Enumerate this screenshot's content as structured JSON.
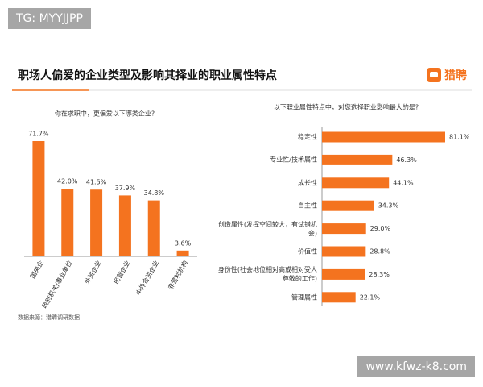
{
  "watermark_top": "TG: MYYJJPP",
  "watermark_bottom": "www.kfwz-k8.com",
  "title": "职场人偏爱的企业类型及影响其择业的职业属性特点",
  "logo": "猎聘",
  "source": "数据来源：猎聘调研数据",
  "chart_data": [
    {
      "type": "bar",
      "orientation": "vertical",
      "color": "#f4731f",
      "subtitle": "你在求职中，更偏爱以下哪类企业?",
      "categories": [
        "国央企",
        "政府机关/事业单位",
        "外资企业",
        "民营企业",
        "中外合资企业",
        "非营利机构"
      ],
      "values": [
        71.7,
        42.0,
        41.5,
        37.9,
        34.8,
        3.6
      ],
      "value_labels": [
        "71.7%",
        "42.0%",
        "41.5%",
        "37.9%",
        "34.8%",
        "3.6%"
      ]
    },
    {
      "type": "bar",
      "orientation": "horizontal",
      "color": "#f4731f",
      "subtitle": "以下职业属性特点中，对您选择职业影响最大的是?",
      "categories": [
        "稳定性",
        "专业性/技术属性",
        "成长性",
        "自主性",
        "创造属性(发挥空间较大，有试错机会)",
        "价值性",
        "身份性(社会地位相对高或相对受人尊敬的工作)",
        "管理属性"
      ],
      "values": [
        81.1,
        46.3,
        44.1,
        34.3,
        29.0,
        28.8,
        28.3,
        22.1
      ],
      "value_labels": [
        "81.1%",
        "46.3%",
        "44.1%",
        "34.3%",
        "29.0%",
        "28.8%",
        "28.3%",
        "22.1%"
      ]
    }
  ]
}
